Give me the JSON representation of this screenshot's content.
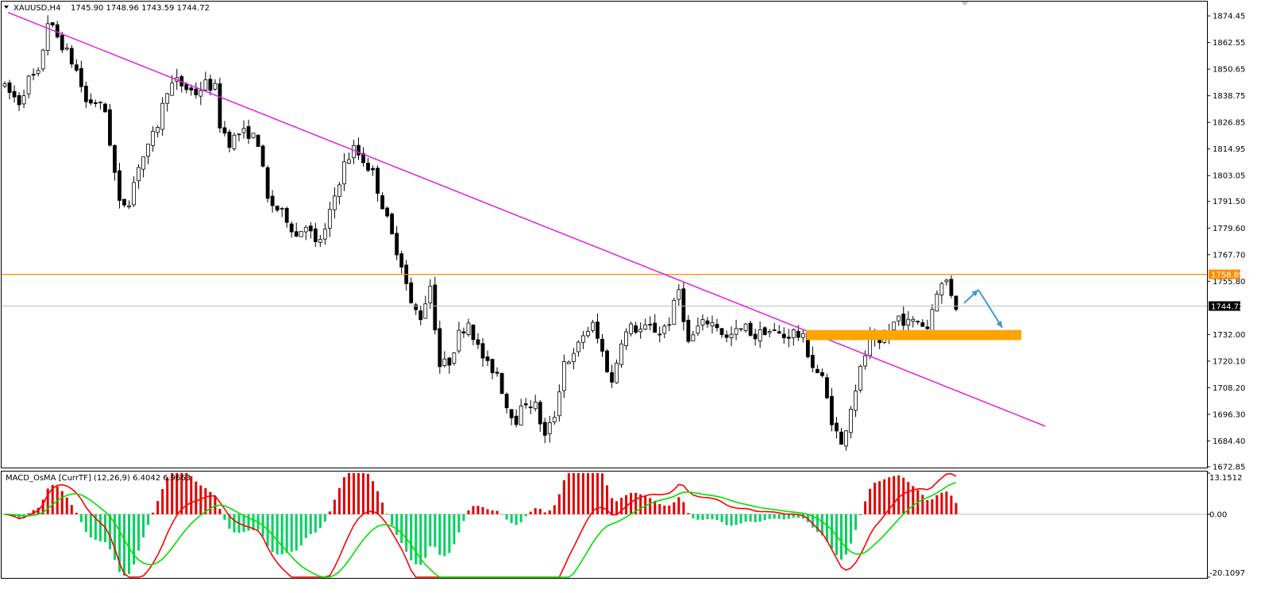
{
  "main_header": {
    "symbol": "XAUUSD,H4",
    "ohlc": "1745.90 1748.96 1743.59 1744.72"
  },
  "indicator_header": {
    "text": "MACD_OsMA [CurrTF] (12,26,9) 6.4042 6.9663"
  },
  "colors": {
    "bull_body": "#ffffff",
    "bear_body": "#000000",
    "trendline": "#e020e0",
    "resistance": "#ff8c00",
    "current_price_line": "#c0c0c0",
    "zone": "#ffa500",
    "arrow": "#3a9ad9",
    "hist_pos": "#e00000",
    "hist_neg": "#00d060",
    "macd_line": "#ff0000",
    "signal_line": "#00e000"
  },
  "chart_data": [
    {
      "type": "candlestick",
      "symbol": "XAUUSD",
      "timeframe": "H4",
      "ylim": [
        1672.85,
        1880.5
      ],
      "yticks": [
        "1874.45",
        "1862.55",
        "1850.65",
        "1838.75",
        "1826.85",
        "1814.95",
        "1803.05",
        "1791.50",
        "1779.60",
        "1767.70",
        "1755.80",
        "1744.72",
        "1732.00",
        "1720.10",
        "1708.20",
        "1696.30",
        "1684.40",
        "1672.85"
      ],
      "price_path": [
        [
          0,
          1842
        ],
        [
          3,
          1836
        ],
        [
          5,
          1846
        ],
        [
          7,
          1848
        ],
        [
          9,
          1872
        ],
        [
          11,
          1865
        ],
        [
          13,
          1858
        ],
        [
          15,
          1850
        ],
        [
          17,
          1836
        ],
        [
          19,
          1836
        ],
        [
          21,
          1832
        ],
        [
          24,
          1790
        ],
        [
          26,
          1792
        ],
        [
          28,
          1808
        ],
        [
          30,
          1815
        ],
        [
          32,
          1826
        ],
        [
          34,
          1842
        ],
        [
          36,
          1845
        ],
        [
          38,
          1842
        ],
        [
          40,
          1840
        ],
        [
          42,
          1844
        ],
        [
          44,
          1842
        ],
        [
          45,
          1826
        ],
        [
          47,
          1818
        ],
        [
          49,
          1822
        ],
        [
          51,
          1822
        ],
        [
          53,
          1818
        ],
        [
          55,
          1792
        ],
        [
          57,
          1788
        ],
        [
          59,
          1784
        ],
        [
          61,
          1776
        ],
        [
          63,
          1782
        ],
        [
          65,
          1772
        ],
        [
          67,
          1778
        ],
        [
          69,
          1794
        ],
        [
          71,
          1808
        ],
        [
          73,
          1815
        ],
        [
          75,
          1810
        ],
        [
          77,
          1804
        ],
        [
          79,
          1790
        ],
        [
          81,
          1776
        ],
        [
          83,
          1764
        ],
        [
          85,
          1745
        ],
        [
          87,
          1740
        ],
        [
          89,
          1754
        ],
        [
          91,
          1718
        ],
        [
          93,
          1720
        ],
        [
          95,
          1732
        ],
        [
          97,
          1738
        ],
        [
          99,
          1726
        ],
        [
          101,
          1718
        ],
        [
          103,
          1715
        ],
        [
          105,
          1700
        ],
        [
          107,
          1694
        ],
        [
          109,
          1702
        ],
        [
          111,
          1700
        ],
        [
          113,
          1686
        ],
        [
          115,
          1696
        ],
        [
          117,
          1720
        ],
        [
          119,
          1722
        ],
        [
          121,
          1732
        ],
        [
          123,
          1736
        ],
        [
          125,
          1724
        ],
        [
          127,
          1710
        ],
        [
          129,
          1730
        ],
        [
          131,
          1735
        ],
        [
          133,
          1734
        ],
        [
          135,
          1735
        ],
        [
          137,
          1733
        ],
        [
          139,
          1738
        ],
        [
          141,
          1752
        ],
        [
          143,
          1728
        ],
        [
          145,
          1735
        ],
        [
          147,
          1738
        ],
        [
          149,
          1736
        ],
        [
          151,
          1730
        ],
        [
          153,
          1733
        ],
        [
          155,
          1735
        ],
        [
          157,
          1731
        ],
        [
          159,
          1734
        ],
        [
          161,
          1733
        ],
        [
          163,
          1731
        ],
        [
          165,
          1733
        ],
        [
          167,
          1730
        ],
        [
          169,
          1718
        ],
        [
          171,
          1712
        ],
        [
          173,
          1694
        ],
        [
          175,
          1682
        ],
        [
          177,
          1700
        ],
        [
          179,
          1716
        ],
        [
          181,
          1730
        ],
        [
          183,
          1726
        ],
        [
          185,
          1734
        ],
        [
          187,
          1740
        ],
        [
          189,
          1737
        ],
        [
          191,
          1738
        ],
        [
          193,
          1735
        ],
        [
          195,
          1752
        ],
        [
          197,
          1756
        ],
        [
          199,
          1745
        ]
      ],
      "current_price": 1744.72,
      "annotations": {
        "resistance_level": 1758.89,
        "trendline": {
          "start": [
            1,
            1876
          ],
          "end": [
            218,
            1691
          ]
        },
        "zone": {
          "price_low": 1729.5,
          "price_high": 1734.0,
          "from_bar": 168,
          "to_bar": 213
        },
        "arrow_up": {
          "from": [
            201,
            1746
          ],
          "to": [
            204,
            1752
          ]
        },
        "arrow_down": {
          "from": [
            204,
            1752
          ],
          "to": [
            209,
            1735
          ]
        }
      }
    },
    {
      "type": "macd_histogram",
      "name": "MACD_OsMA [CurrTF] (12,26,9)",
      "params": [
        12,
        26,
        9
      ],
      "values_label": [
        "6.4042",
        "6.9663"
      ],
      "ylim": [
        -20.1097,
        13.1512
      ],
      "yticks": [
        "13.1512",
        "0.00",
        "-20.1097"
      ]
    }
  ]
}
